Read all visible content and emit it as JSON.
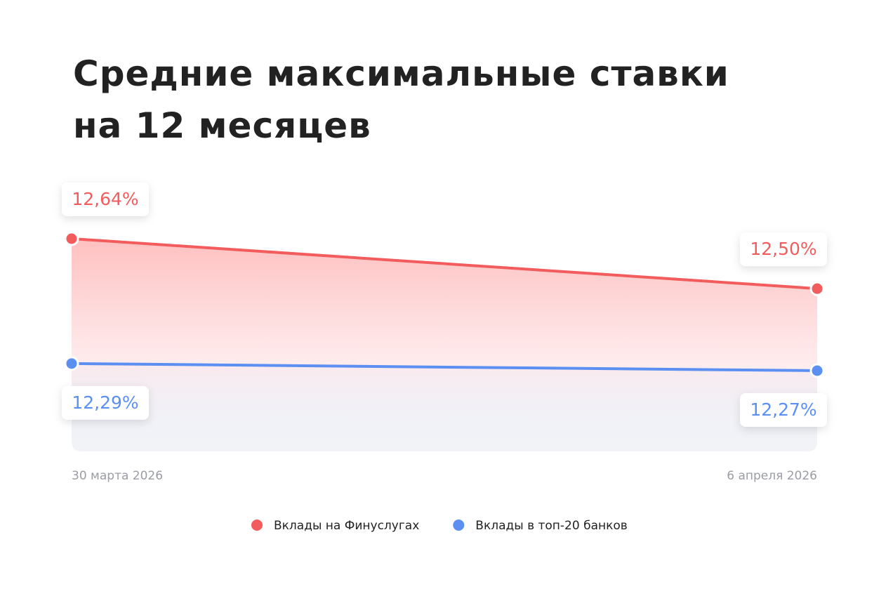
{
  "chart_data": {
    "type": "line",
    "title": "Средние максимальные ставки\nна 12 месяцев",
    "x": [
      "30 марта 2026",
      "6 апреля 2026"
    ],
    "series": [
      {
        "name": "Вклады на Финуслугах",
        "color": "#f25c5c",
        "values": [
          12.64,
          12.5
        ],
        "value_labels": [
          "12,64%",
          "12,50%"
        ]
      },
      {
        "name": "Вклады в топ-20 банков",
        "color": "#5b8ff2",
        "values": [
          12.29,
          12.27
        ],
        "value_labels": [
          "12,29%",
          "12,27%"
        ]
      }
    ]
  }
}
